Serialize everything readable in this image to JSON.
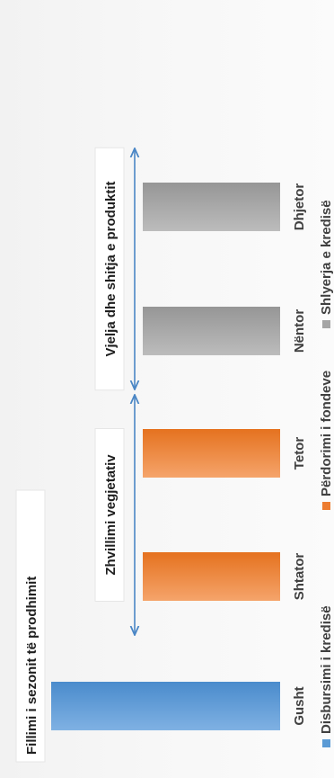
{
  "chart_data": {
    "type": "bar",
    "orientation": "vertical",
    "categories": [
      "Gusht",
      "Shtator",
      "Tetor",
      "Nëntor",
      "Dhjetor"
    ],
    "series": [
      {
        "name": "Disbursimi i kredisë",
        "color": "#5b9bd5",
        "values": [
          1,
          0,
          0,
          0,
          0
        ]
      },
      {
        "name": "Përdorimi i fondeve",
        "color": "#ed7d31",
        "values": [
          0,
          0.6,
          0.6,
          0,
          0
        ]
      },
      {
        "name": "Shlyerja e kredisë",
        "color": "#a5a5a5",
        "values": [
          0,
          0,
          0,
          0.6,
          0.6
        ]
      }
    ],
    "ylim": [
      0,
      1
    ],
    "grid": false,
    "legend_position": "bottom",
    "annotations": [
      {
        "text": "Fillimi i sezonit të prodhimit",
        "category": "Gusht",
        "type": "label"
      },
      {
        "text": "Zhvillimi vegjetativ",
        "from": "Shtator",
        "to": "Tetor",
        "type": "double-arrow"
      },
      {
        "text": "Vjelja dhe shitja e produktit",
        "from": "Nëntor",
        "to": "Dhjetor",
        "type": "double-arrow"
      }
    ]
  }
}
